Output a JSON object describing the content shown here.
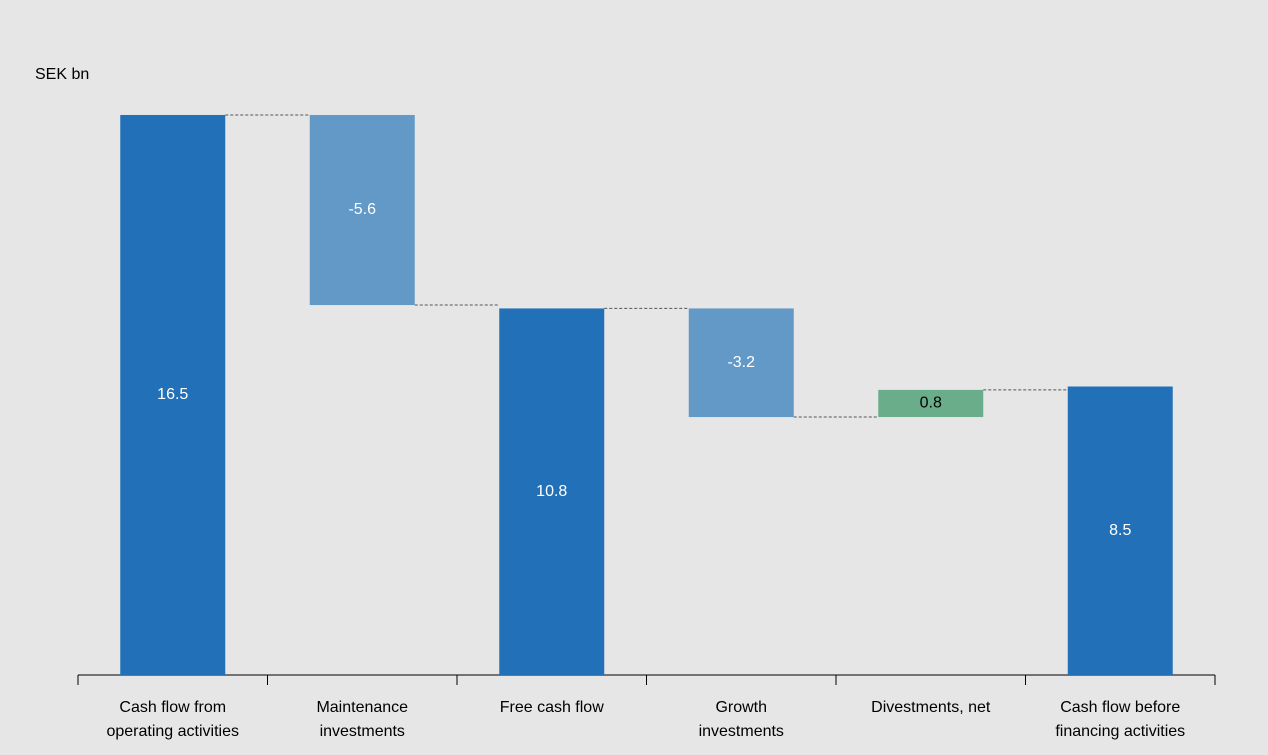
{
  "chart_data": {
    "type": "waterfall",
    "unit_label": "SEK bn",
    "categories": [
      [
        "Cash flow from",
        "operating activities"
      ],
      [
        "Maintenance",
        "investments"
      ],
      [
        "Free cash flow"
      ],
      [
        "Growth",
        "investments"
      ],
      [
        "Divestments, net"
      ],
      [
        "Cash flow before",
        "financing activities"
      ]
    ],
    "values": [
      16.5,
      -5.6,
      10.8,
      -3.2,
      0.8,
      8.5
    ],
    "kinds": [
      "total",
      "delta",
      "total",
      "delta",
      "delta",
      "total"
    ],
    "colors": [
      "#2271b8",
      "#6399c7",
      "#2271b8",
      "#6399c7",
      "#6aad8a",
      "#2271b8"
    ],
    "label_colors": [
      "#ffffff",
      "#ffffff",
      "#ffffff",
      "#ffffff",
      "#000000",
      "#ffffff"
    ],
    "ylim": [
      0,
      17
    ]
  }
}
